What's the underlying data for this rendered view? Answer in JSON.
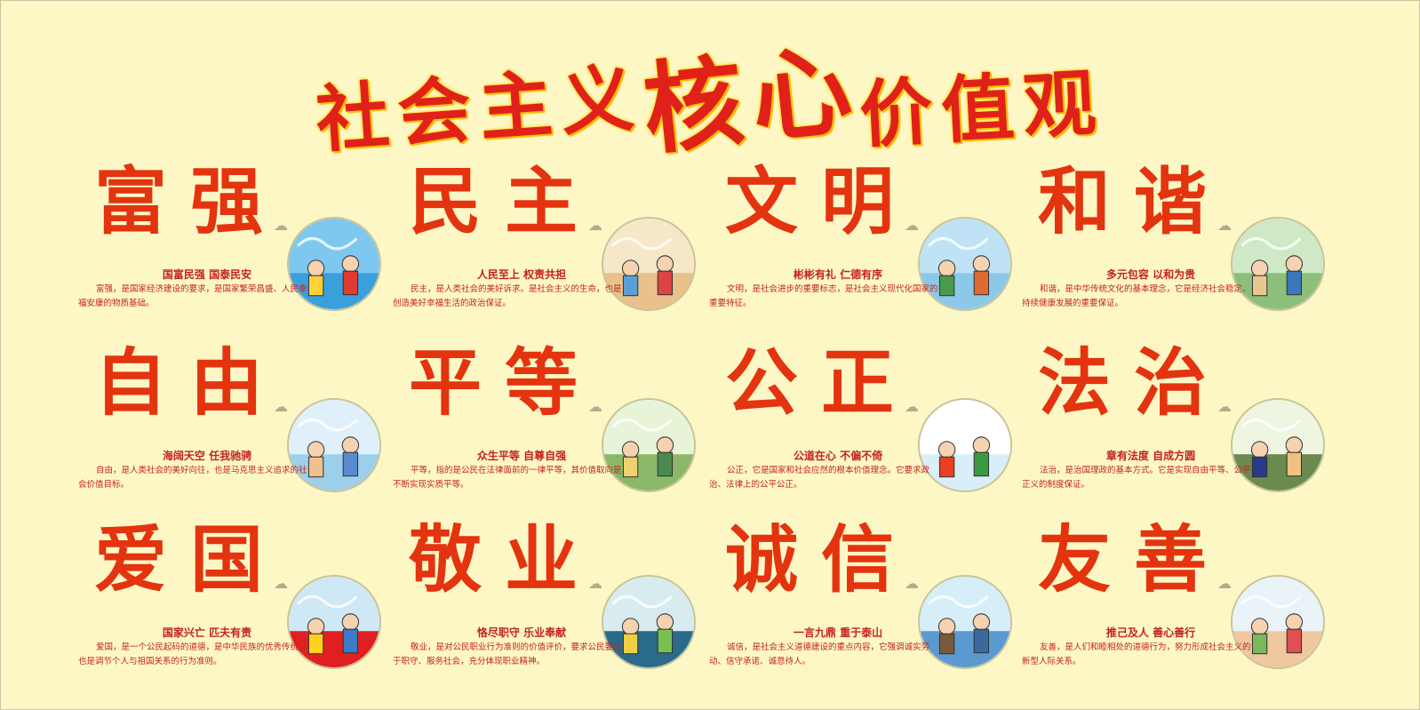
{
  "title": {
    "part1": "社会主义",
    "part2": "核心",
    "part3": "价值观"
  },
  "values": [
    {
      "name": "富强",
      "motto": "国富民强  国泰民安",
      "desc": "富强，是国家经济建设的要求，是国家繁荣昌盛、人民幸福安康的物质基础。",
      "illustration": "rocket-monument-illustration"
    },
    {
      "name": "民主",
      "motto": "人民至上  权责共担",
      "desc": "民主，是人类社会的美好诉求。是社会主义的生命，也是创造美好幸福生活的政治保证。",
      "illustration": "people-voting-illustration"
    },
    {
      "name": "文明",
      "motto": "彬彬有礼  仁德有序",
      "desc": "文明，是社会进步的重要标志，是社会主义现代化国家的重要特征。",
      "illustration": "helping-elder-illustration"
    },
    {
      "name": "和谐",
      "motto": "多元包容  以和为贵",
      "desc": "和谐，是中华传统文化的基本理念，它是经济社会稳定、持续健康发展的重要保证。",
      "illustration": "community-illustration"
    },
    {
      "name": "自由",
      "motto": "海阔天空  任我驰骋",
      "desc": "自由，是人类社会的美好向往，也是马克思主义追求的社会价值目标。",
      "illustration": "dreaming-children-illustration"
    },
    {
      "name": "平等",
      "motto": "众生平等  自尊自强",
      "desc": "平等，指的是公民在法律面前的一律平等，其价值取向是不断实现实质平等。",
      "illustration": "balance-scale-illustration"
    },
    {
      "name": "公正",
      "motto": "公道在心  不偏不倚",
      "desc": "公正，它是国家和社会应然的根本价值理念。它要求政治、法律上的公平公正。",
      "illustration": "shield-crowd-illustration"
    },
    {
      "name": "法治",
      "motto": "章有法度  自成方圆",
      "desc": "法治，是治国理政的基本方式。它是实现自由平等、公平正义的制度保证。",
      "illustration": "police-elder-illustration"
    },
    {
      "name": "爱国",
      "motto": "国家兴亡  匹夫有责",
      "desc": "爱国，是一个公民起码的道德，是中华民族的优秀传统，也是调节个人与祖国关系的行为准则。",
      "illustration": "flag-salute-illustration"
    },
    {
      "name": "敬业",
      "motto": "恪尽职守  乐业奉献",
      "desc": "敬业，是对公民职业行为准则的价值评价，要求公民要忠于职守、服务社会，充分体现职业精神。",
      "illustration": "workers-illustration"
    },
    {
      "name": "诚信",
      "motto": "一言九鼎  重于泰山",
      "desc": "诚信，是社会主义道德建设的重点内容，它强调诚实劳动、信守承诺、诚恳待人。",
      "illustration": "handshake-illustration"
    },
    {
      "name": "友善",
      "motto": "推己及人  善心善行",
      "desc": "友善，是人们和睦相处的道德行为，努力形成社会主义的新型人际关系。",
      "illustration": "seat-offering-illustration"
    }
  ]
}
